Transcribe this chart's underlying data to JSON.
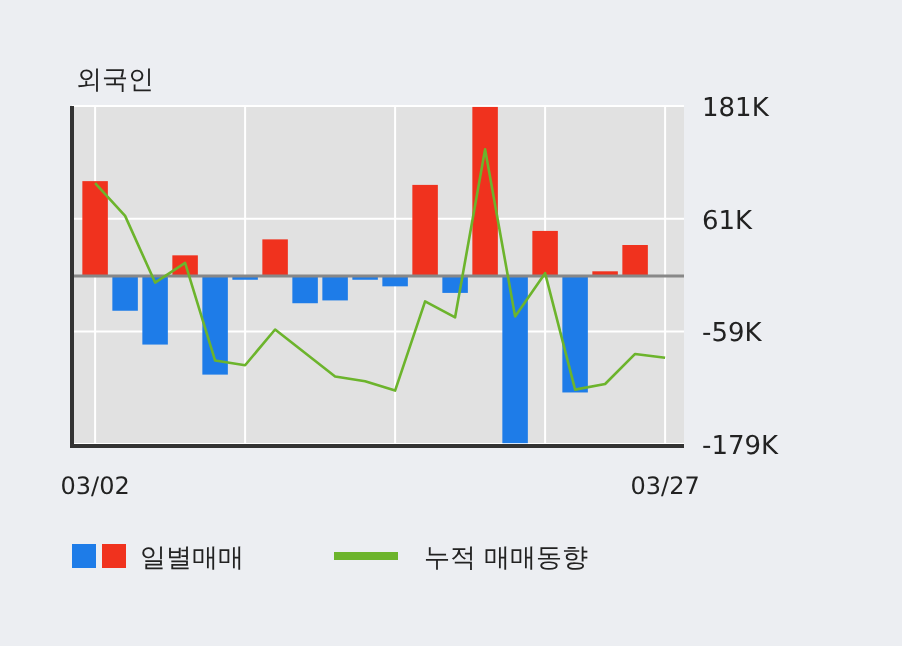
{
  "chart_data": {
    "type": "bar",
    "title": "외국인",
    "categories": [
      "03/02",
      null,
      null,
      null,
      null,
      null,
      null,
      null,
      null,
      null,
      null,
      null,
      null,
      null,
      null,
      null,
      null,
      null,
      null,
      "03/27"
    ],
    "series": [
      {
        "name": "일별매매",
        "colors": [
          "#f0321e",
          "#1e7ce8",
          "#1e7ce8",
          "#f0321e",
          "#1e7ce8",
          "#1e7ce8",
          "#f0321e",
          "#1e7ce8",
          "#1e7ce8",
          "#1e7ce8",
          "#1e7ce8",
          "#f0321e",
          "#1e7ce8",
          "#f0321e",
          "#1e7ce8",
          "#f0321e",
          "#1e7ce8",
          "#f0321e",
          "#f0321e",
          "#f0321e"
        ],
        "values": [
          101,
          -37,
          -73,
          22,
          -105,
          -4,
          39,
          -29,
          -26,
          -4,
          -11,
          97,
          -18,
          180,
          -178,
          48,
          -124,
          5,
          33,
          0
        ]
      },
      {
        "type": "line",
        "name": "누적 매매동향",
        "color": "#6cb42c",
        "values": [
          99,
          64,
          -7,
          14,
          -90,
          -95,
          -57,
          -82,
          -107,
          -112,
          -122,
          -27,
          -44,
          135,
          -43,
          3,
          -121,
          -115,
          -83,
          -87
        ]
      }
    ],
    "ylim": [
      -181,
      181
    ],
    "yticks": [
      {
        "value": 181,
        "label": "181K"
      },
      {
        "value": 61,
        "label": "61K"
      },
      {
        "value": -59,
        "label": "-59K"
      },
      {
        "value": -179,
        "label": "-179K"
      }
    ],
    "grid": true,
    "legend": "bottom"
  }
}
